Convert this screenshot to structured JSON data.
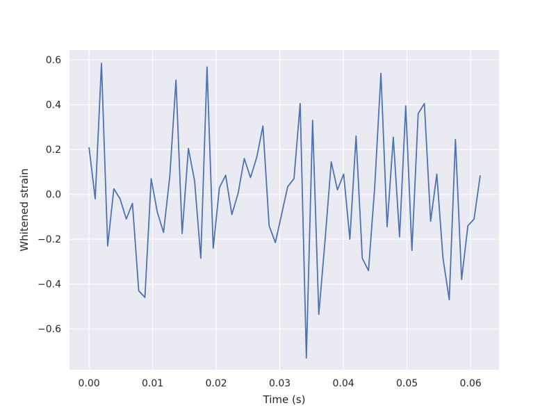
{
  "chart_data": {
    "type": "line",
    "title": "",
    "xlabel": "Time (s)",
    "ylabel": "Whitened strain",
    "xlim": [
      -0.00307,
      0.06447
    ],
    "ylim": [
      -0.7823,
      0.6438
    ],
    "xticks": [
      0.0,
      0.01,
      0.02,
      0.03,
      0.04,
      0.05,
      0.06
    ],
    "xtick_labels": [
      "0.00",
      "0.01",
      "0.02",
      "0.03",
      "0.04",
      "0.05",
      "0.06"
    ],
    "yticks": [
      -0.6,
      -0.4,
      -0.2,
      0.0,
      0.2,
      0.4,
      0.6
    ],
    "ytick_labels": [
      "−0.6",
      "−0.4",
      "−0.2",
      "0.0",
      "0.2",
      "0.4",
      "0.6"
    ],
    "grid": true,
    "style": {
      "background": "#EAEAF2",
      "grid_color": "#FFFFFF",
      "line_color": "#4C72B0"
    },
    "series": [
      {
        "x": [
          0.0,
          0.000977,
          0.001953,
          0.00293,
          0.003906,
          0.004883,
          0.005859,
          0.006836,
          0.007813,
          0.008789,
          0.009766,
          0.010742,
          0.011719,
          0.012695,
          0.013672,
          0.014648,
          0.015625,
          0.016602,
          0.017578,
          0.018555,
          0.019531,
          0.020508,
          0.021484,
          0.022461,
          0.023438,
          0.024414,
          0.025391,
          0.026367,
          0.027344,
          0.02832,
          0.029297,
          0.030273,
          0.03125,
          0.032227,
          0.033203,
          0.03418,
          0.035156,
          0.036133,
          0.037109,
          0.038086,
          0.039063,
          0.040039,
          0.041016,
          0.041992,
          0.042969,
          0.043945,
          0.044922,
          0.045898,
          0.046875,
          0.047852,
          0.048828,
          0.049805,
          0.050781,
          0.051758,
          0.052734,
          0.053711,
          0.054688,
          0.055664,
          0.056641,
          0.057617,
          0.058594,
          0.05957,
          0.060547,
          0.061523
        ],
        "values": [
          0.21,
          -0.02,
          0.585,
          -0.23,
          0.025,
          -0.02,
          -0.11,
          -0.04,
          -0.43,
          -0.46,
          0.07,
          -0.08,
          -0.17,
          0.08,
          0.51,
          -0.175,
          0.205,
          0.06,
          -0.285,
          0.568,
          -0.24,
          0.03,
          0.085,
          -0.09,
          0.005,
          0.16,
          0.075,
          0.165,
          0.305,
          -0.14,
          -0.215,
          -0.09,
          0.035,
          0.07,
          0.405,
          -0.73,
          0.33,
          -0.535,
          -0.21,
          0.145,
          0.02,
          0.09,
          -0.2,
          0.26,
          -0.285,
          -0.34,
          0.03,
          0.54,
          -0.145,
          0.255,
          -0.19,
          0.395,
          -0.25,
          0.36,
          0.405,
          -0.12,
          0.09,
          -0.285,
          -0.47,
          0.245,
          -0.38,
          -0.14,
          -0.11,
          0.085
        ]
      }
    ]
  }
}
